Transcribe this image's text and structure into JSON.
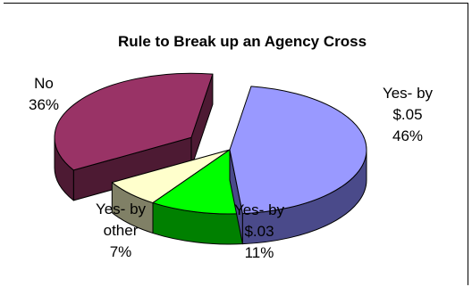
{
  "chart_data": {
    "type": "pie",
    "style": "3d-exploded",
    "title": "Rule to Break up an Agency Cross",
    "slices": [
      {
        "label_lines": [
          "Yes- by",
          "$.05",
          "46%"
        ],
        "value": 46,
        "top_color": "#9999ff",
        "side_color": "#4a4a8a"
      },
      {
        "label_lines": [
          "Yes- by",
          "$.03",
          "11%"
        ],
        "value": 11,
        "top_color": "#00ff00",
        "side_color": "#008000"
      },
      {
        "label_lines": [
          "Yes- by",
          "other",
          "7%"
        ],
        "value": 7,
        "top_color": "#ffffcc",
        "side_color": "#808066"
      },
      {
        "label_lines": [
          "No",
          "36%"
        ],
        "value": 36,
        "top_color": "#993366",
        "side_color": "#4d1a33"
      }
    ],
    "legend": "none",
    "grid": false
  }
}
